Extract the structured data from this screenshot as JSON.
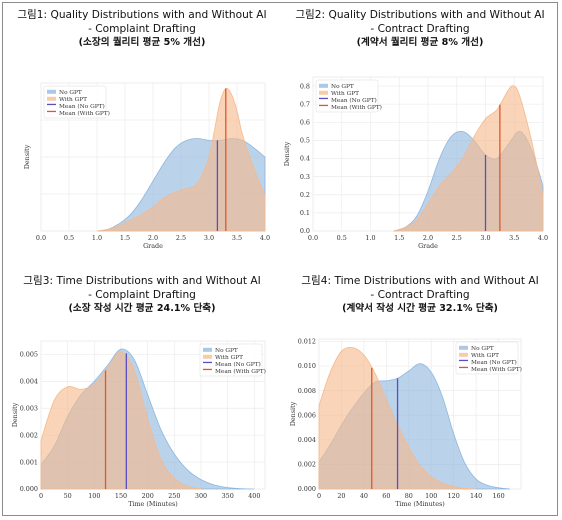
{
  "charts": [
    {
      "title_line1": "그림1: Quality Distributions with and Without AI",
      "title_line2": "- Complaint Drafting",
      "subtitle": "(소장의 퀄리티 평균 5% 개선)",
      "chart_data": {
        "type": "area",
        "xlabel": "Grade",
        "ylabel": "Density",
        "xlim": [
          0.0,
          4.0
        ],
        "ylim": [
          0,
          0.8
        ],
        "xticks": [
          "0.0",
          "0.5",
          "1.0",
          "1.5",
          "2.0",
          "2.5",
          "3.0",
          "3.5",
          "4.0"
        ],
        "yticks": [],
        "legend_position": "top-left",
        "legend": [
          "No GPT",
          "With GPT",
          "Mean (No GPT)",
          "Mean (With GPT)"
        ],
        "series": [
          {
            "name": "No GPT",
            "color": "#8fb7dd",
            "x": [
              1.0,
              1.2,
              1.4,
              1.6,
              1.8,
              2.0,
              2.2,
              2.4,
              2.6,
              2.8,
              3.0,
              3.2,
              3.4,
              3.6,
              3.8,
              4.0
            ],
            "y": [
              0.0,
              0.01,
              0.04,
              0.09,
              0.17,
              0.27,
              0.37,
              0.45,
              0.49,
              0.5,
              0.49,
              0.49,
              0.5,
              0.49,
              0.45,
              0.4
            ]
          },
          {
            "name": "With GPT",
            "color": "#f6b98c",
            "x": [
              1.0,
              1.2,
              1.4,
              1.6,
              1.8,
              2.0,
              2.2,
              2.4,
              2.6,
              2.8,
              3.0,
              3.1,
              3.2,
              3.3,
              3.4,
              3.5,
              3.6,
              3.8,
              4.0
            ],
            "y": [
              0.0,
              0.01,
              0.03,
              0.06,
              0.09,
              0.13,
              0.18,
              0.21,
              0.23,
              0.26,
              0.4,
              0.55,
              0.7,
              0.77,
              0.74,
              0.65,
              0.52,
              0.34,
              0.19
            ]
          }
        ],
        "means": [
          {
            "name": "Mean (No GPT)",
            "x": 3.15,
            "color": "#5a4ec2"
          },
          {
            "name": "Mean (With GPT)",
            "x": 3.3,
            "color": "#e0562c"
          }
        ]
      }
    },
    {
      "title_line1": "그림2: Quality Distributions with and Without AI",
      "title_line2": "- Contract Drafting",
      "subtitle": "(계약서 퀄리티 평균 8% 개선)",
      "chart_data": {
        "type": "area",
        "xlabel": "Grade",
        "ylabel": "Density",
        "xlim": [
          0.0,
          4.0
        ],
        "ylim": [
          0,
          0.85
        ],
        "xticks": [
          "0.0",
          "0.5",
          "1.0",
          "1.5",
          "2.0",
          "2.5",
          "3.0",
          "3.5",
          "4.0"
        ],
        "yticks": [
          "0.0",
          "0.1",
          "0.2",
          "0.3",
          "0.4",
          "0.5",
          "0.6",
          "0.7",
          "0.8"
        ],
        "legend_position": "top-left",
        "legend": [
          "No GPT",
          "With GPT",
          "Mean (No GPT)",
          "Mean (With GPT)"
        ],
        "series": [
          {
            "name": "No GPT",
            "color": "#8fb7dd",
            "x": [
              1.4,
              1.6,
              1.8,
              2.0,
              2.2,
              2.4,
              2.6,
              2.8,
              3.0,
              3.2,
              3.4,
              3.6,
              3.8,
              4.0
            ],
            "y": [
              0.0,
              0.02,
              0.08,
              0.22,
              0.4,
              0.52,
              0.55,
              0.5,
              0.42,
              0.4,
              0.48,
              0.55,
              0.45,
              0.25
            ]
          },
          {
            "name": "With GPT",
            "color": "#f6b98c",
            "x": [
              1.4,
              1.6,
              1.8,
              2.0,
              2.2,
              2.4,
              2.6,
              2.8,
              3.0,
              3.2,
              3.4,
              3.5,
              3.6,
              3.8,
              4.0
            ],
            "y": [
              0.0,
              0.02,
              0.06,
              0.15,
              0.25,
              0.32,
              0.4,
              0.52,
              0.62,
              0.67,
              0.78,
              0.8,
              0.74,
              0.5,
              0.2
            ]
          }
        ],
        "means": [
          {
            "name": "Mean (No GPT)",
            "x": 3.0,
            "color": "#5a4ec2"
          },
          {
            "name": "Mean (With GPT)",
            "x": 3.25,
            "color": "#e0562c"
          }
        ]
      }
    },
    {
      "title_line1": "그림3: Time Distributions with and Without AI",
      "title_line2": "- Complaint Drafting",
      "subtitle": "(소장 작성 시간 평균 24.1% 단축)",
      "chart_data": {
        "type": "area",
        "xlabel": "Time (Minutes)",
        "ylabel": "Density",
        "xlim": [
          0,
          420
        ],
        "ylim": [
          0,
          0.0055
        ],
        "xticks": [
          "0",
          "50",
          "100",
          "150",
          "200",
          "250",
          "300",
          "350",
          "400"
        ],
        "yticks": [
          "0.000",
          "0.001",
          "0.002",
          "0.003",
          "0.004",
          "0.005"
        ],
        "legend_position": "top-right",
        "legend": [
          "No GPT",
          "With GPT",
          "Mean (No GPT)",
          "Mean (With GPT)"
        ],
        "series": [
          {
            "name": "No GPT",
            "color": "#8fb7dd",
            "x": [
              0,
              25,
              50,
              75,
              100,
              125,
              150,
              175,
              200,
              225,
              250,
              275,
              300,
              325,
              350,
              375,
              400
            ],
            "y": [
              0.0009,
              0.0016,
              0.0027,
              0.0035,
              0.004,
              0.0046,
              0.0052,
              0.0048,
              0.0035,
              0.0022,
              0.0013,
              0.0007,
              0.00035,
              0.00015,
              5e-05,
              1e-05,
              0.0
            ]
          },
          {
            "name": "With GPT",
            "color": "#f6b98c",
            "x": [
              0,
              25,
              50,
              75,
              100,
              125,
              150,
              175,
              200,
              225,
              250,
              275,
              300
            ],
            "y": [
              0.0018,
              0.0033,
              0.0038,
              0.0037,
              0.0039,
              0.0045,
              0.0051,
              0.0044,
              0.0026,
              0.0011,
              0.0004,
              0.0001,
              0.0
            ]
          }
        ],
        "means": [
          {
            "name": "Mean (No GPT)",
            "x": 160,
            "color": "#5a4ec2"
          },
          {
            "name": "Mean (With GPT)",
            "x": 121,
            "color": "#e0562c"
          }
        ]
      }
    },
    {
      "title_line1": "그림4: Time Distributions with and Without AI",
      "title_line2": "- Contract Drafting",
      "subtitle": "(계약서 작성 시간 평균 32.1% 단축)",
      "chart_data": {
        "type": "area",
        "xlabel": "Time (Minutes)",
        "ylabel": "Density",
        "xlim": [
          0,
          180
        ],
        "ylim": [
          0,
          0.0122
        ],
        "xticks": [
          "0",
          "20",
          "40",
          "60",
          "80",
          "100",
          "120",
          "140",
          "160"
        ],
        "yticks": [
          "0.000",
          "0.002",
          "0.004",
          "0.006",
          "0.008",
          "0.010",
          "0.012"
        ],
        "legend_position": "top-right",
        "legend": [
          "No GPT",
          "With GPT",
          "Mean (No GPT)",
          "Mean (With GPT)"
        ],
        "series": [
          {
            "name": "No GPT",
            "color": "#8fb7dd",
            "x": [
              0,
              10,
              20,
              30,
              40,
              50,
              60,
              70,
              80,
              90,
              100,
              110,
              120,
              130,
              140,
              150,
              160,
              170
            ],
            "y": [
              0.0022,
              0.0036,
              0.0052,
              0.0066,
              0.0078,
              0.0087,
              0.0088,
              0.009,
              0.0096,
              0.0102,
              0.0095,
              0.0075,
              0.0045,
              0.0021,
              0.0008,
              0.0003,
              0.0001,
              0.0
            ]
          },
          {
            "name": "With GPT",
            "color": "#f6b98c",
            "x": [
              0,
              10,
              20,
              30,
              40,
              50,
              60,
              70,
              80,
              90,
              100,
              110,
              120,
              130,
              140
            ],
            "y": [
              0.0068,
              0.0095,
              0.0112,
              0.0115,
              0.0109,
              0.0094,
              0.0073,
              0.0052,
              0.0034,
              0.0019,
              0.001,
              0.0005,
              0.0002,
              5e-05,
              0.0
            ]
          }
        ],
        "means": [
          {
            "name": "Mean (No GPT)",
            "x": 70,
            "color": "#5a4ec2"
          },
          {
            "name": "Mean (With GPT)",
            "x": 47,
            "color": "#e0562c"
          }
        ]
      }
    }
  ]
}
